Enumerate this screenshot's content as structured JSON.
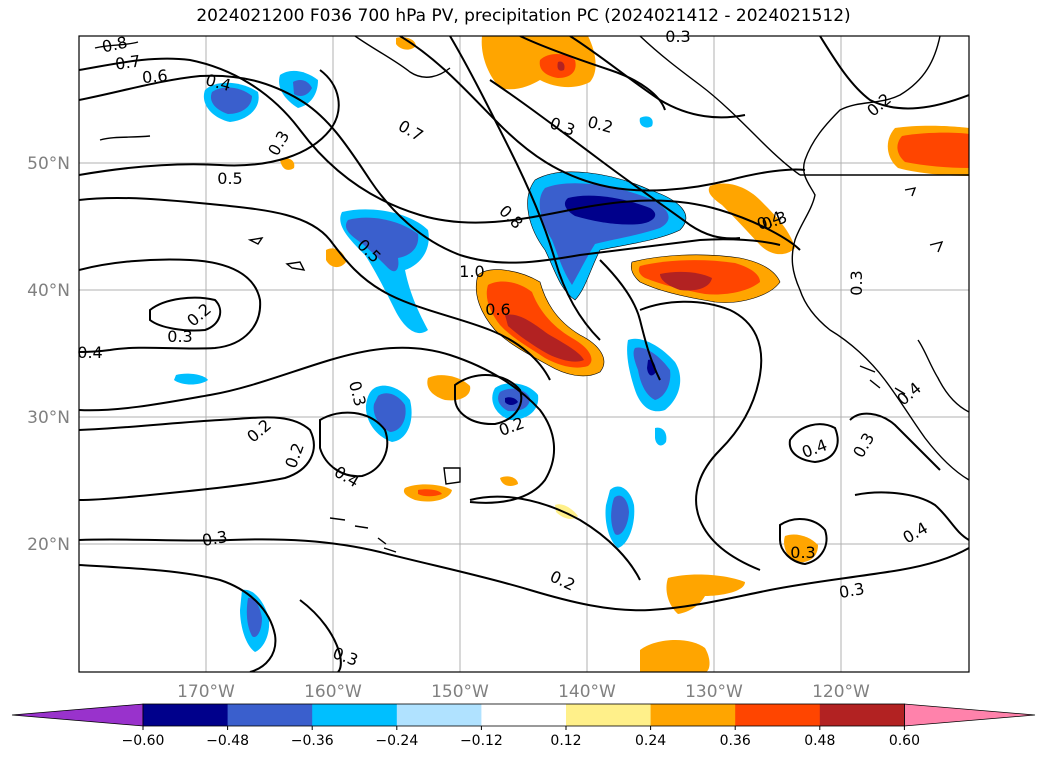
{
  "title": "2024021200 F036 700 hPa PV, precipitation PC (2024021412 - 2024021512)",
  "lat_ticks": [
    "50°N",
    "40°N",
    "30°N",
    "20°N"
  ],
  "lon_ticks": [
    "170°W",
    "160°W",
    "150°W",
    "140°W",
    "130°W",
    "120°W"
  ],
  "contour_labels": [
    "0.8",
    "0.7",
    "0.6",
    "0.4",
    "0.3",
    "0.5",
    "0.7",
    "0.3",
    "0.2",
    "0.3",
    "0.8",
    "0.4",
    "0.5",
    "1.0",
    "0.6",
    "0.2",
    "0.3",
    "0.4",
    "0.3",
    "0.2",
    "0.2",
    "0.3",
    "0.4",
    "0.2",
    "0.3",
    "0.2",
    "0.3",
    "0.3",
    "0.4",
    "0.3",
    "0.3",
    "0.4",
    "0.3",
    "0.4",
    "0.2"
  ],
  "colorbar": {
    "ticks": [
      "−0.60",
      "−0.48",
      "−0.36",
      "−0.24",
      "−0.12",
      "0.12",
      "0.24",
      "0.36",
      "0.48",
      "0.60"
    ],
    "colors": [
      "#9932cc",
      "#00008b",
      "#3a5fcd",
      "#00bfff",
      "#b0e2ff",
      "#ffffff",
      "#fff08a",
      "#ffa500",
      "#ff4500",
      "#b22222",
      "#ff82ab"
    ]
  },
  "colors": {
    "grid": "#b0b0b0",
    "contour": "#000000",
    "tick_text": "#808080"
  }
}
